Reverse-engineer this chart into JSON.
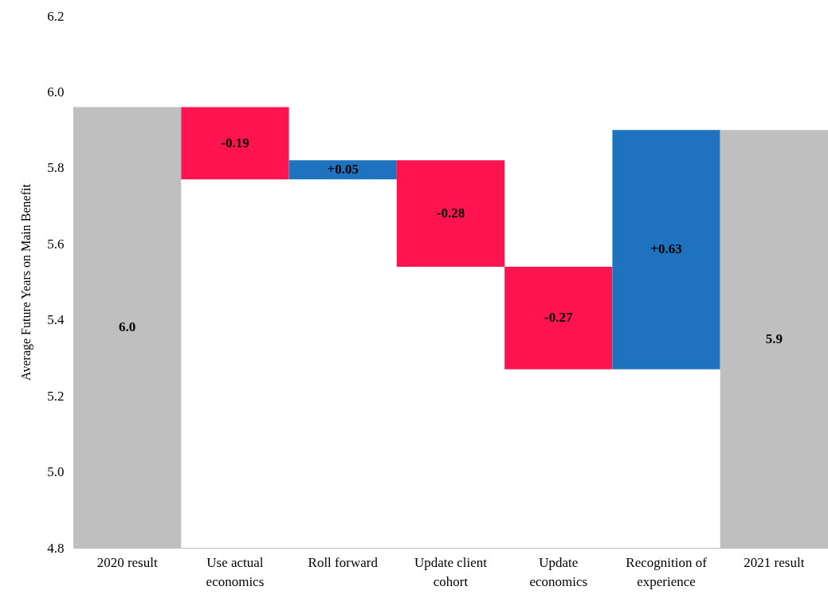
{
  "chart_data": {
    "type": "bar",
    "ylabel": "Average Future Years on Main Benefit",
    "categories": [
      "2020 result",
      "Use actual economics",
      "Roll forward",
      "Update client cohort",
      "Update economics",
      "Recognition of experience",
      "2021 result"
    ],
    "values": [
      5.96,
      -0.19,
      0.05,
      -0.28,
      -0.27,
      0.63,
      5.9
    ],
    "base": [
      null,
      5.96,
      5.77,
      5.82,
      5.54,
      5.27,
      null
    ],
    "colors": [
      "#bfbfbf",
      "#ff1450",
      "#1f72bd",
      "#ff1450",
      "#ff1450",
      "#1f72bd",
      "#bfbfbf"
    ],
    "value_labels": [
      "6.0",
      "-0.19",
      "+0.05",
      "-0.28",
      "-0.27",
      "+0.63",
      "5.9"
    ],
    "ylim": [
      4.8,
      6.2
    ],
    "yticks": [
      4.8,
      {
        "value": 5,
        "label": "5.0"
      },
      5.2,
      5.4,
      5.6,
      5.8,
      {
        "value": 6,
        "label": "6.0"
      },
      6.2
    ]
  }
}
